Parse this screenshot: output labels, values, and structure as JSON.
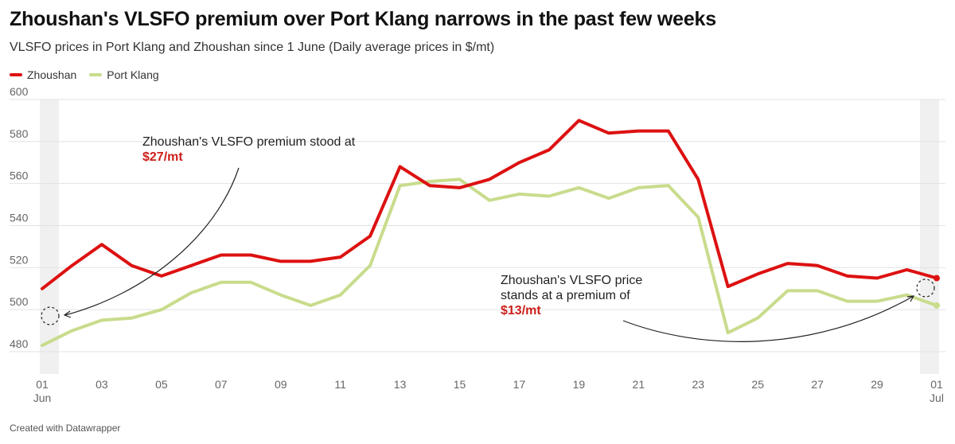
{
  "title": "Zhoushan's VLSFO premium over Port Klang narrows in the past few weeks",
  "subtitle": "VLSFO prices in Port Klang and Zhoushan since 1 June (Daily average prices in $/mt)",
  "footer": "Created with Datawrapper",
  "colors": {
    "zhoushan": "#dd1111",
    "port_klang": "#c8dc8c",
    "grid": "#e2e2e2",
    "shade": "#f0f0f0"
  },
  "chart_data": {
    "type": "line",
    "ylim": [
      480,
      600
    ],
    "yticks": [
      480,
      500,
      520,
      540,
      560,
      580,
      600
    ],
    "x": [
      "2024-06-01",
      "2024-06-02",
      "2024-06-03",
      "2024-06-04",
      "2024-06-05",
      "2024-06-06",
      "2024-06-07",
      "2024-06-08",
      "2024-06-09",
      "2024-06-10",
      "2024-06-11",
      "2024-06-12",
      "2024-06-13",
      "2024-06-14",
      "2024-06-15",
      "2024-06-16",
      "2024-06-17",
      "2024-06-18",
      "2024-06-19",
      "2024-06-20",
      "2024-06-21",
      "2024-06-22",
      "2024-06-23",
      "2024-06-24",
      "2024-06-25",
      "2024-06-26",
      "2024-06-27",
      "2024-06-28",
      "2024-06-29",
      "2024-06-30",
      "2024-07-01"
    ],
    "xticks": [
      {
        "top": "01",
        "bottom": "Jun"
      },
      {
        "top": "03",
        "bottom": ""
      },
      {
        "top": "05",
        "bottom": ""
      },
      {
        "top": "07",
        "bottom": ""
      },
      {
        "top": "09",
        "bottom": ""
      },
      {
        "top": "11",
        "bottom": ""
      },
      {
        "top": "13",
        "bottom": ""
      },
      {
        "top": "15",
        "bottom": ""
      },
      {
        "top": "17",
        "bottom": ""
      },
      {
        "top": "19",
        "bottom": ""
      },
      {
        "top": "21",
        "bottom": ""
      },
      {
        "top": "23",
        "bottom": ""
      },
      {
        "top": "25",
        "bottom": ""
      },
      {
        "top": "27",
        "bottom": ""
      },
      {
        "top": "29",
        "bottom": ""
      },
      {
        "top": "01",
        "bottom": "Jul"
      }
    ],
    "series": [
      {
        "name": "Zhoushan",
        "values": [
          510,
          521,
          531,
          521,
          516,
          521,
          526,
          526,
          523,
          523,
          525,
          535,
          568,
          559,
          558,
          562,
          570,
          576,
          590,
          584,
          585,
          585,
          562,
          511,
          517,
          522,
          521,
          516,
          515,
          519,
          515
        ]
      },
      {
        "name": "Port Klang",
        "values": [
          483,
          490,
          495,
          496,
          500,
          508,
          513,
          513,
          507,
          502,
          507,
          521,
          559,
          561,
          562,
          552,
          555,
          554,
          558,
          553,
          558,
          559,
          544,
          489,
          496,
          509,
          509,
          504,
          504,
          507,
          502
        ]
      }
    ],
    "highlighted_dates": [
      "2024-06-01",
      "2024-07-01"
    ],
    "annotations": [
      {
        "text": "Zhoushan's VLSFO premium stood at",
        "highlight": "$27/mt",
        "date": "2024-06-01"
      },
      {
        "lines": [
          "Zhoushan's VLSFO price",
          "stands at a premium of"
        ],
        "highlight": "$13/mt",
        "date": "2024-07-01"
      }
    ]
  }
}
